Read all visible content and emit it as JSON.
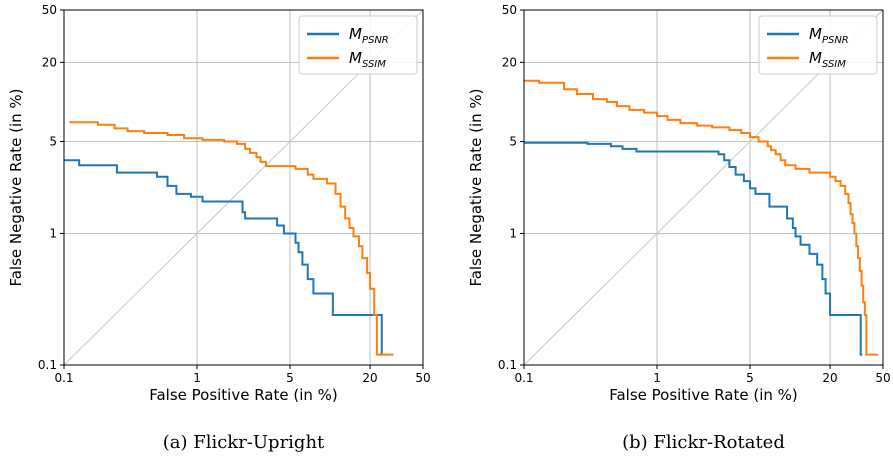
{
  "chart_data": [
    {
      "type": "line",
      "caption": "(a) Flickr-Upright",
      "xlabel": "False Positive Rate (in %)",
      "ylabel": "False Negative Rate (in %)",
      "xscale": "log",
      "yscale": "log",
      "xlim": [
        0.1,
        50
      ],
      "ylim": [
        0.1,
        50
      ],
      "xticks": [
        0.1,
        1,
        5,
        20,
        50
      ],
      "yticks": [
        0.1,
        1,
        5,
        20,
        50
      ],
      "grid": true,
      "diagonal": true,
      "legend_position": "top-right",
      "series": [
        {
          "name": "M_PSNR",
          "name_main": "M",
          "name_sub": "PSNR",
          "color": "#1f77b4",
          "points": [
            [
              0.1,
              3.6
            ],
            [
              0.13,
              3.6
            ],
            [
              0.13,
              3.3
            ],
            [
              0.25,
              3.3
            ],
            [
              0.25,
              2.9
            ],
            [
              0.5,
              2.9
            ],
            [
              0.5,
              2.7
            ],
            [
              0.6,
              2.7
            ],
            [
              0.6,
              2.3
            ],
            [
              0.7,
              2.3
            ],
            [
              0.7,
              2.0
            ],
            [
              0.9,
              2.0
            ],
            [
              0.9,
              1.9
            ],
            [
              1.1,
              1.9
            ],
            [
              1.1,
              1.75
            ],
            [
              2.2,
              1.75
            ],
            [
              2.2,
              1.45
            ],
            [
              2.3,
              1.45
            ],
            [
              2.3,
              1.3
            ],
            [
              4.0,
              1.3
            ],
            [
              4.0,
              1.15
            ],
            [
              4.5,
              1.15
            ],
            [
              4.5,
              1.0
            ],
            [
              5.5,
              1.0
            ],
            [
              5.5,
              0.85
            ],
            [
              5.8,
              0.85
            ],
            [
              5.8,
              0.72
            ],
            [
              6.2,
              0.72
            ],
            [
              6.2,
              0.58
            ],
            [
              6.8,
              0.58
            ],
            [
              6.8,
              0.45
            ],
            [
              7.5,
              0.45
            ],
            [
              7.5,
              0.35
            ],
            [
              10.5,
              0.35
            ],
            [
              10.5,
              0.24
            ],
            [
              24.5,
              0.24
            ],
            [
              24.5,
              0.12
            ],
            [
              25.0,
              0.12
            ]
          ]
        },
        {
          "name": "M_SSIM",
          "name_main": "M",
          "name_sub": "SSIM",
          "color": "#ff7f0e",
          "points": [
            [
              0.11,
              7.0
            ],
            [
              0.18,
              7.0
            ],
            [
              0.18,
              6.7
            ],
            [
              0.24,
              6.7
            ],
            [
              0.24,
              6.3
            ],
            [
              0.3,
              6.3
            ],
            [
              0.3,
              6.0
            ],
            [
              0.4,
              6.0
            ],
            [
              0.4,
              5.8
            ],
            [
              0.6,
              5.8
            ],
            [
              0.6,
              5.6
            ],
            [
              0.8,
              5.6
            ],
            [
              0.8,
              5.3
            ],
            [
              1.1,
              5.3
            ],
            [
              1.1,
              5.15
            ],
            [
              1.6,
              5.15
            ],
            [
              1.6,
              5.0
            ],
            [
              2.0,
              5.0
            ],
            [
              2.0,
              4.8
            ],
            [
              2.3,
              4.8
            ],
            [
              2.3,
              4.4
            ],
            [
              2.5,
              4.4
            ],
            [
              2.5,
              4.1
            ],
            [
              2.8,
              4.1
            ],
            [
              2.8,
              3.8
            ],
            [
              3.0,
              3.8
            ],
            [
              3.0,
              3.5
            ],
            [
              3.3,
              3.5
            ],
            [
              3.3,
              3.25
            ],
            [
              5.5,
              3.25
            ],
            [
              5.5,
              3.1
            ],
            [
              6.8,
              3.1
            ],
            [
              6.8,
              2.8
            ],
            [
              7.5,
              2.8
            ],
            [
              7.5,
              2.6
            ],
            [
              9.5,
              2.6
            ],
            [
              9.5,
              2.4
            ],
            [
              11.0,
              2.4
            ],
            [
              11.0,
              2.0
            ],
            [
              12.0,
              2.0
            ],
            [
              12.0,
              1.6
            ],
            [
              13.0,
              1.6
            ],
            [
              13.0,
              1.3
            ],
            [
              14.0,
              1.3
            ],
            [
              14.0,
              1.1
            ],
            [
              15.0,
              1.1
            ],
            [
              15.0,
              0.95
            ],
            [
              16.5,
              0.95
            ],
            [
              16.5,
              0.8
            ],
            [
              17.5,
              0.8
            ],
            [
              17.5,
              0.65
            ],
            [
              19.0,
              0.65
            ],
            [
              19.0,
              0.5
            ],
            [
              20.0,
              0.5
            ],
            [
              20.0,
              0.38
            ],
            [
              21.5,
              0.38
            ],
            [
              21.5,
              0.24
            ],
            [
              22.5,
              0.24
            ],
            [
              22.5,
              0.12
            ],
            [
              30.0,
              0.12
            ]
          ]
        }
      ]
    },
    {
      "type": "line",
      "caption": "(b) Flickr-Rotated",
      "xlabel": "False Positive Rate (in %)",
      "ylabel": "False Negative Rate (in %)",
      "xscale": "log",
      "yscale": "log",
      "xlim": [
        0.1,
        50
      ],
      "ylim": [
        0.1,
        50
      ],
      "xticks": [
        0.1,
        1,
        5,
        20,
        50
      ],
      "yticks": [
        0.1,
        1,
        5,
        20,
        50
      ],
      "grid": true,
      "diagonal": true,
      "legend_position": "top-right",
      "series": [
        {
          "name": "M_PSNR",
          "name_main": "M",
          "name_sub": "PSNR",
          "color": "#1f77b4",
          "points": [
            [
              0.1,
              4.9
            ],
            [
              0.3,
              4.9
            ],
            [
              0.3,
              4.8
            ],
            [
              0.45,
              4.8
            ],
            [
              0.45,
              4.6
            ],
            [
              0.55,
              4.6
            ],
            [
              0.55,
              4.4
            ],
            [
              0.7,
              4.4
            ],
            [
              0.7,
              4.2
            ],
            [
              2.9,
              4.2
            ],
            [
              2.9,
              4.0
            ],
            [
              3.2,
              4.0
            ],
            [
              3.2,
              3.6
            ],
            [
              3.5,
              3.6
            ],
            [
              3.5,
              3.2
            ],
            [
              3.9,
              3.2
            ],
            [
              3.9,
              2.8
            ],
            [
              4.5,
              2.8
            ],
            [
              4.5,
              2.5
            ],
            [
              5.0,
              2.5
            ],
            [
              5.0,
              2.2
            ],
            [
              5.5,
              2.2
            ],
            [
              5.5,
              2.0
            ],
            [
              7.0,
              2.0
            ],
            [
              7.0,
              1.6
            ],
            [
              9.5,
              1.6
            ],
            [
              9.5,
              1.3
            ],
            [
              10.5,
              1.3
            ],
            [
              10.5,
              1.1
            ],
            [
              11.0,
              1.1
            ],
            [
              11.0,
              0.95
            ],
            [
              12.0,
              0.95
            ],
            [
              12.0,
              0.82
            ],
            [
              14.0,
              0.82
            ],
            [
              14.0,
              0.7
            ],
            [
              16.0,
              0.7
            ],
            [
              16.0,
              0.58
            ],
            [
              17.5,
              0.58
            ],
            [
              17.5,
              0.45
            ],
            [
              18.5,
              0.45
            ],
            [
              18.5,
              0.35
            ],
            [
              20.0,
              0.35
            ],
            [
              20.0,
              0.24
            ],
            [
              34.0,
              0.24
            ],
            [
              34.0,
              0.12
            ],
            [
              35.0,
              0.12
            ]
          ]
        },
        {
          "name": "M_SSIM",
          "name_main": "M",
          "name_sub": "SSIM",
          "color": "#ff7f0e",
          "points": [
            [
              0.1,
              14.5
            ],
            [
              0.13,
              14.5
            ],
            [
              0.13,
              14.0
            ],
            [
              0.2,
              14.0
            ],
            [
              0.2,
              12.5
            ],
            [
              0.25,
              12.5
            ],
            [
              0.25,
              11.5
            ],
            [
              0.33,
              11.5
            ],
            [
              0.33,
              10.5
            ],
            [
              0.42,
              10.5
            ],
            [
              0.42,
              10.0
            ],
            [
              0.5,
              10.0
            ],
            [
              0.5,
              9.3
            ],
            [
              0.62,
              9.3
            ],
            [
              0.62,
              8.7
            ],
            [
              0.8,
              8.7
            ],
            [
              0.8,
              8.3
            ],
            [
              1.0,
              8.3
            ],
            [
              1.0,
              7.8
            ],
            [
              1.2,
              7.8
            ],
            [
              1.2,
              7.3
            ],
            [
              1.5,
              7.3
            ],
            [
              1.5,
              6.9
            ],
            [
              2.0,
              6.9
            ],
            [
              2.0,
              6.6
            ],
            [
              2.6,
              6.6
            ],
            [
              2.6,
              6.4
            ],
            [
              3.5,
              6.4
            ],
            [
              3.5,
              6.1
            ],
            [
              4.3,
              6.1
            ],
            [
              4.3,
              5.8
            ],
            [
              5.0,
              5.8
            ],
            [
              5.0,
              5.4
            ],
            [
              5.8,
              5.4
            ],
            [
              5.8,
              5.0
            ],
            [
              6.8,
              5.0
            ],
            [
              6.8,
              4.6
            ],
            [
              7.2,
              4.6
            ],
            [
              7.2,
              4.3
            ],
            [
              7.8,
              4.3
            ],
            [
              7.8,
              4.0
            ],
            [
              8.5,
              4.0
            ],
            [
              8.5,
              3.6
            ],
            [
              9.2,
              3.6
            ],
            [
              9.2,
              3.3
            ],
            [
              11.0,
              3.3
            ],
            [
              11.0,
              3.1
            ],
            [
              14.0,
              3.1
            ],
            [
              14.0,
              2.9
            ],
            [
              20.0,
              2.9
            ],
            [
              20.0,
              2.7
            ],
            [
              22.0,
              2.7
            ],
            [
              22.0,
              2.5
            ],
            [
              24.0,
              2.5
            ],
            [
              24.0,
              2.3
            ],
            [
              26.0,
              2.3
            ],
            [
              26.0,
              2.0
            ],
            [
              27.5,
              2.0
            ],
            [
              27.5,
              1.7
            ],
            [
              28.5,
              1.7
            ],
            [
              28.5,
              1.4
            ],
            [
              29.5,
              1.4
            ],
            [
              29.5,
              1.2
            ],
            [
              30.5,
              1.2
            ],
            [
              30.5,
              1.0
            ],
            [
              31.5,
              1.0
            ],
            [
              31.5,
              0.8
            ],
            [
              32.5,
              0.8
            ],
            [
              32.5,
              0.65
            ],
            [
              33.5,
              0.65
            ],
            [
              33.5,
              0.52
            ],
            [
              34.5,
              0.52
            ],
            [
              34.5,
              0.4
            ],
            [
              35.5,
              0.4
            ],
            [
              35.5,
              0.3
            ],
            [
              36.5,
              0.3
            ],
            [
              36.5,
              0.24
            ],
            [
              37.5,
              0.24
            ],
            [
              37.5,
              0.12
            ],
            [
              46.0,
              0.12
            ]
          ]
        }
      ]
    }
  ]
}
